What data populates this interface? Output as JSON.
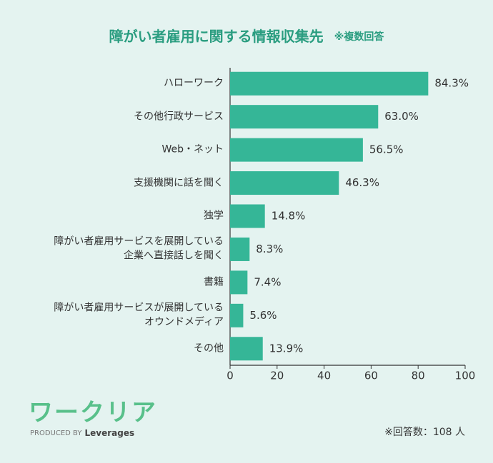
{
  "chart_data": {
    "type": "barh",
    "title": "障がい者雇用に関する情報収集先",
    "subtitle": "※複数回答",
    "categories": [
      "ハローワーク",
      "その他行政サービス",
      "Web・ネット",
      "支援機関に話を聞く",
      "独学",
      "障がい者雇用サービスを展開している\n企業へ直接話しを聞く",
      "書籍",
      "障がい者雇用サービスが展開している\nオウンドメディア",
      "その他"
    ],
    "values": [
      84.3,
      63.0,
      56.5,
      46.3,
      14.8,
      8.3,
      7.4,
      5.6,
      13.9
    ],
    "value_labels": [
      "84.3%",
      "63.0%",
      "56.5%",
      "46.3%",
      "14.8%",
      "8.3%",
      "7.4%",
      "5.6%",
      "13.9%"
    ],
    "color": "#35b697",
    "xlim": [
      0,
      100
    ],
    "xticks": [
      0,
      20,
      40,
      60,
      80,
      100
    ],
    "grid": false
  },
  "footer": {
    "logo": "ワークリア",
    "produced_by": "PRODUCED BY",
    "brand": "Leverages",
    "note": "※回答数：108 人"
  }
}
